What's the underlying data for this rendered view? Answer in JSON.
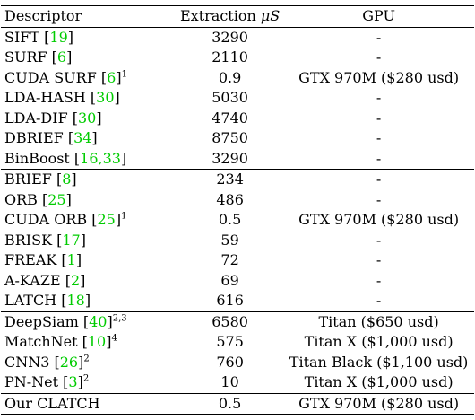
{
  "headers": {
    "descriptor": "Descriptor",
    "extraction_prefix": "Extraction ",
    "extraction_unit": "μS",
    "gpu": "GPU"
  },
  "groups": [
    [
      {
        "name": "SIFT",
        "ref": "19",
        "sup": "",
        "time": "3290",
        "gpu": "-"
      },
      {
        "name": "SURF",
        "ref": "6",
        "sup": "",
        "time": "2110",
        "gpu": "-"
      },
      {
        "name": "CUDA SURF",
        "ref": "6",
        "sup": "1",
        "time": "0.9",
        "gpu": "GTX 970M ($280 usd)"
      },
      {
        "name": "LDA-HASH",
        "ref": "30",
        "sup": "",
        "time": "5030",
        "gpu": "-"
      },
      {
        "name": "LDA-DIF",
        "ref": "30",
        "sup": "",
        "time": "4740",
        "gpu": "-"
      },
      {
        "name": "DBRIEF",
        "ref": "34",
        "sup": "",
        "time": "8750",
        "gpu": "-"
      },
      {
        "name": "BinBoost",
        "ref": "16,33",
        "sup": "",
        "time": "3290",
        "gpu": "-"
      }
    ],
    [
      {
        "name": "BRIEF",
        "ref": "8",
        "sup": "",
        "time": "234",
        "gpu": "-"
      },
      {
        "name": "ORB",
        "ref": "25",
        "sup": "",
        "time": "486",
        "gpu": "-"
      },
      {
        "name": "CUDA ORB",
        "ref": "25",
        "sup": "1",
        "time": "0.5",
        "gpu": "GTX 970M ($280 usd)"
      },
      {
        "name": "BRISK",
        "ref": "17",
        "sup": "",
        "time": "59",
        "gpu": "-"
      },
      {
        "name": "FREAK",
        "ref": "1",
        "sup": "",
        "time": "72",
        "gpu": "-"
      },
      {
        "name": "A-KAZE",
        "ref": "2",
        "sup": "",
        "time": "69",
        "gpu": "-"
      },
      {
        "name": "LATCH",
        "ref": "18",
        "sup": "",
        "time": "616",
        "gpu": "-"
      }
    ],
    [
      {
        "name": "DeepSiam",
        "ref": "40",
        "sup": "2,3",
        "time": "6580",
        "gpu": "Titan ($650 usd)"
      },
      {
        "name": "MatchNet",
        "ref": "10",
        "sup": "4",
        "time": "575",
        "gpu": "Titan X ($1,000 usd)"
      },
      {
        "name": "CNN3",
        "ref": "26",
        "sup": "2",
        "time": "760",
        "gpu": "Titan Black ($1,100 usd)"
      },
      {
        "name": "PN-Net",
        "ref": "3",
        "sup": "2",
        "time": "10",
        "gpu": "Titan X ($1,000 usd)"
      }
    ],
    [
      {
        "name": "Our CLATCH",
        "ref": "",
        "sup": "",
        "time": "0.5",
        "gpu": "GTX 970M ($280 usd)"
      }
    ]
  ],
  "colors": {
    "reference": "#00cc00",
    "text": "#000000"
  }
}
